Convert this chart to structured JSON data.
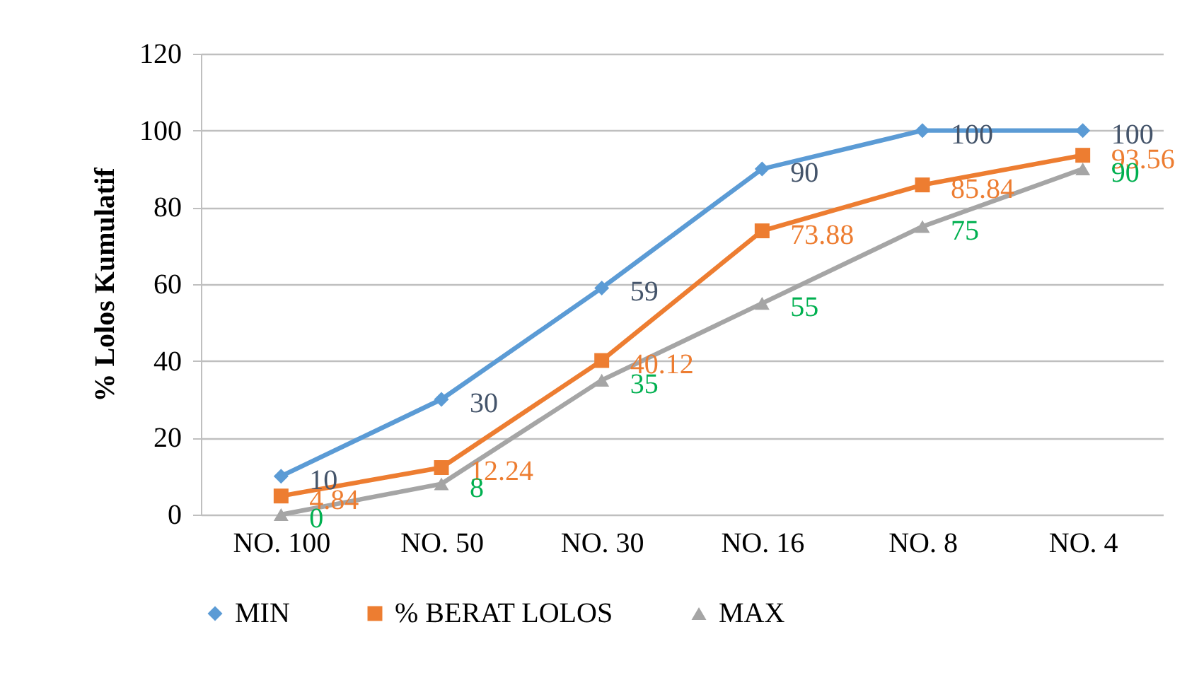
{
  "chart_data": {
    "type": "line",
    "ylabel": "% Lolos Kumulatif",
    "categories": [
      "NO. 100",
      "NO. 50",
      "NO. 30",
      "NO. 16",
      "NO. 8",
      "NO. 4"
    ],
    "series": [
      {
        "name": "MIN",
        "color": "#5b9bd5",
        "marker": "diamond",
        "values": [
          10,
          30,
          59,
          90,
          100,
          100
        ]
      },
      {
        "name": "% BERAT LOLOS",
        "color": "#ed7d31",
        "marker": "square",
        "values": [
          4.84,
          12.24,
          40.12,
          73.88,
          85.84,
          93.56
        ]
      },
      {
        "name": "MAX",
        "color": "#a5a5a5",
        "marker": "triangle",
        "values": [
          0,
          8,
          35,
          55,
          75,
          90
        ]
      }
    ],
    "ylim": [
      0,
      120
    ],
    "yticks": [
      0,
      20,
      40,
      60,
      80,
      100,
      120
    ],
    "grid": "y",
    "legend": "bottom",
    "data_labels": true,
    "line_style": "solid"
  }
}
